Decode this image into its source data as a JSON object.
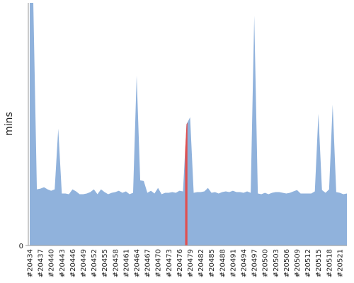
{
  "chart_data": {
    "type": "area",
    "y_label": "mins",
    "categories": [
      "#20434",
      null,
      null,
      "#20437",
      null,
      null,
      "#20440",
      null,
      null,
      "#20443",
      null,
      null,
      "#20446",
      null,
      null,
      "#20449",
      null,
      null,
      "#20452",
      null,
      null,
      "#20455",
      null,
      null,
      "#20458",
      null,
      null,
      "#20461",
      null,
      null,
      "#20464",
      null,
      null,
      "#20467",
      null,
      null,
      "#20470",
      null,
      null,
      "#20473",
      null,
      null,
      "#20476",
      null,
      null,
      "#20479",
      null,
      null,
      "#20482",
      null,
      null,
      "#20485",
      null,
      null,
      "#20488",
      null,
      null,
      "#20491",
      null,
      null,
      "#20494",
      null,
      null,
      "#20497",
      null,
      null,
      "#20500",
      null,
      null,
      "#20503",
      null,
      null,
      "#20506",
      null,
      null,
      "#20509",
      null,
      null,
      "#20512",
      null,
      null,
      "#20515",
      null,
      null,
      "#20518",
      null,
      null,
      "#20521",
      null,
      null
    ],
    "values": [
      70,
      70,
      16.2,
      16.4,
      16.8,
      16.2,
      15.8,
      16.2,
      33.7,
      15,
      15,
      14.8,
      16.2,
      15.6,
      14.8,
      14.8,
      15,
      15.4,
      16.2,
      14.8,
      16.2,
      15.4,
      14.8,
      15.2,
      15.4,
      15.8,
      15.2,
      15.6,
      14.8,
      15.2,
      49,
      18.8,
      18.6,
      15.2,
      15.8,
      15,
      16.6,
      14.8,
      15.2,
      15.2,
      15.4,
      15.2,
      15.8,
      15.6,
      35,
      37,
      15.2,
      15.4,
      15.4,
      15.6,
      16.6,
      15.2,
      15.4,
      15,
      15.4,
      15.6,
      15.4,
      15.8,
      15.4,
      15.4,
      15.2,
      15.6,
      15.2,
      66.3,
      15,
      14.8,
      15.2,
      14.8,
      15.2,
      15.4,
      15.4,
      15.2,
      15,
      15.2,
      15.6,
      16,
      15,
      15,
      15,
      15,
      15.6,
      38,
      16,
      15.2,
      16.2,
      40.6,
      15.4,
      15.2,
      14.8,
      15
    ],
    "color": "#90b2dc",
    "highlight": {
      "index": 44,
      "color": "#e05050"
    },
    "ylim": [
      0,
      70
    ],
    "yticks": [
      0
    ]
  }
}
